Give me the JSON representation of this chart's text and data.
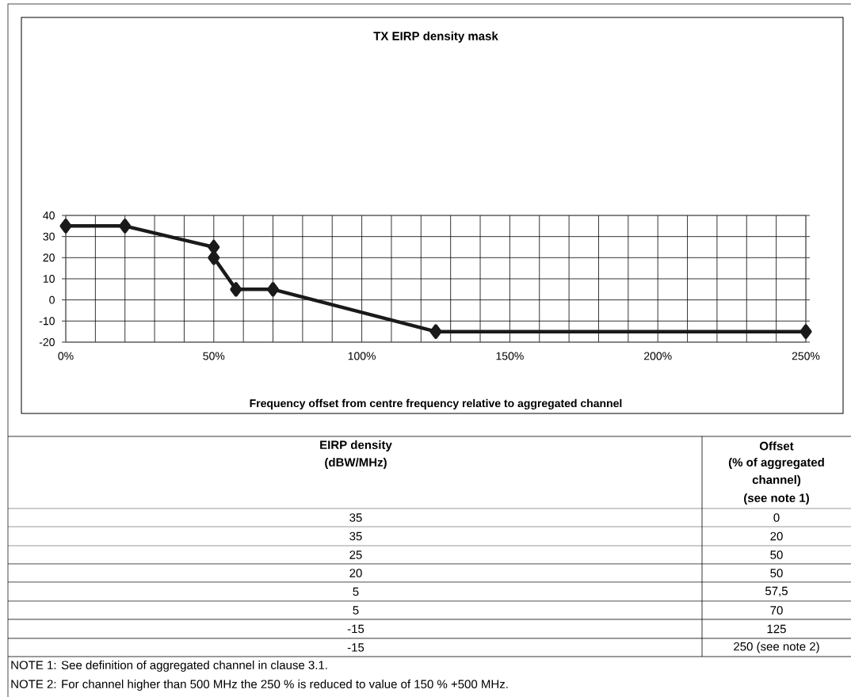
{
  "chart_data": [
    {
      "type": "line",
      "title": "TX EIRP density mask",
      "xlabel": "Frequency offset from centre frequency relative to aggregated channel",
      "x": [
        0,
        20,
        50,
        50,
        57.5,
        70,
        125,
        250
      ],
      "series": [
        {
          "color": "#1a1a1a",
          "values": [
            35,
            35,
            25,
            20,
            5,
            5,
            -15,
            -15
          ]
        }
      ],
      "xlim": [
        0,
        250
      ],
      "ylim": [
        -20,
        40
      ],
      "xticks": [
        {
          "value": 0,
          "label": "0%"
        },
        {
          "value": 10,
          "label": null
        },
        {
          "value": 20,
          "label": null
        },
        {
          "value": 30,
          "label": null
        },
        {
          "value": 40,
          "label": null
        },
        {
          "value": 50,
          "label": "50%"
        },
        {
          "value": 60,
          "label": null
        },
        {
          "value": 70,
          "label": null
        },
        {
          "value": 80,
          "label": null
        },
        {
          "value": 90,
          "label": null
        },
        {
          "value": 100,
          "label": "100%"
        },
        {
          "value": 110,
          "label": null
        },
        {
          "value": 120,
          "label": null
        },
        {
          "value": 130,
          "label": null
        },
        {
          "value": 140,
          "label": null
        },
        {
          "value": 150,
          "label": "150%"
        },
        {
          "value": 160,
          "label": null
        },
        {
          "value": 170,
          "label": null
        },
        {
          "value": 180,
          "label": null
        },
        {
          "value": 190,
          "label": null
        },
        {
          "value": 200,
          "label": "200%"
        },
        {
          "value": 210,
          "label": null
        },
        {
          "value": 220,
          "label": null
        },
        {
          "value": 230,
          "label": null
        },
        {
          "value": 240,
          "label": null
        },
        {
          "value": 250,
          "label": "250%"
        }
      ],
      "yticks": [
        -20,
        -10,
        0,
        10,
        20,
        30,
        40
      ],
      "grid": true,
      "marker": "diamond",
      "line_style": "solid"
    },
    {
      "type": "other",
      "annotations": [
        "EIRP density",
        "(dBW/MHz)",
        "Offset",
        "(% of aggregated",
        "channel)",
        "(see note 1)",
        "35",
        "0",
        "35",
        "20",
        "25",
        "50",
        "20",
        "50",
        "5",
        "57,5",
        "5",
        "70",
        "-15",
        "125",
        "-15",
        "250 (see note 2)",
        "NOTE 1: See definition of aggregated channel in clause 3.1.",
        "NOTE 2: For channel higher than 500 MHz the 250 % is reduced to value of 150 % +500 MHz."
      ]
    }
  ]
}
